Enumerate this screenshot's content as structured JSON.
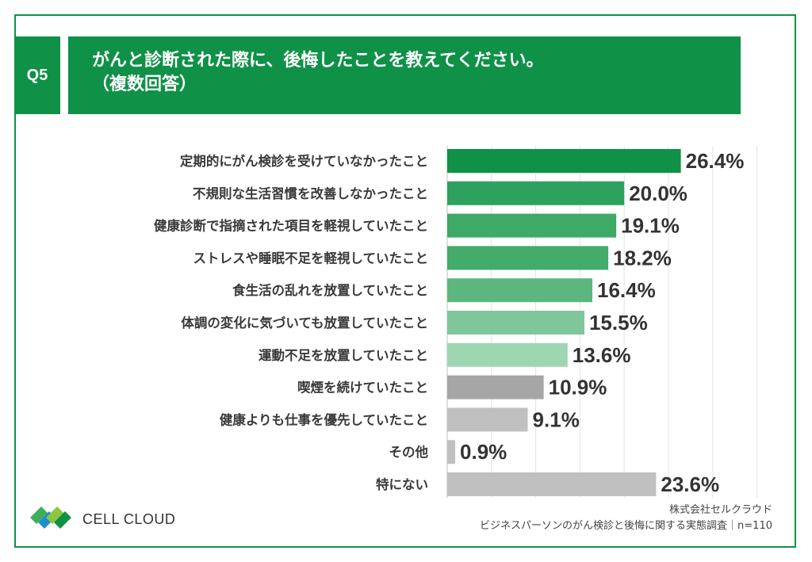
{
  "question": {
    "label": "Q5",
    "line1": "がんと診断された際に、後悔したことを教えてください。",
    "line2": "（複数回答）"
  },
  "chart_data": {
    "type": "bar",
    "orientation": "horizontal",
    "categories": [
      "定期的にがん検診を受けていなかったこと",
      "不規則な生活習慣を改善しなかったこと",
      "健康診断で指摘された項目を軽視していたこと",
      "ストレスや睡眠不足を軽視していたこと",
      "食生活の乱れを放置していたこと",
      "体調の変化に気づいても放置していたこと",
      "運動不足を放置していたこと",
      "喫煙を続けていたこと",
      "健康よりも仕事を優先していたこと",
      "その他",
      "特にない"
    ],
    "values": [
      26.4,
      20.0,
      19.1,
      18.2,
      16.4,
      15.5,
      13.6,
      10.9,
      9.1,
      0.9,
      23.6
    ],
    "value_labels": [
      "26.4%",
      "20.0%",
      "19.1%",
      "18.2%",
      "16.4%",
      "15.5%",
      "13.6%",
      "10.9%",
      "9.1%",
      "0.9%",
      "23.6%"
    ],
    "colors": [
      "#0f9147",
      "#2fa15e",
      "#3fa968",
      "#43ab6b",
      "#5cb77f",
      "#7fc79a",
      "#9fd6b2",
      "#a6a6a6",
      "#c0c0c0",
      "#c0c0c0",
      "#c0c0c0"
    ],
    "xlim": [
      0,
      35
    ],
    "grid": true
  },
  "brand": {
    "name": "CELL CLOUD"
  },
  "source": {
    "company": "株式会社セルクラウド",
    "survey": "ビジネスパーソンのがん検診と後悔に関する実態調査｜n=110"
  }
}
